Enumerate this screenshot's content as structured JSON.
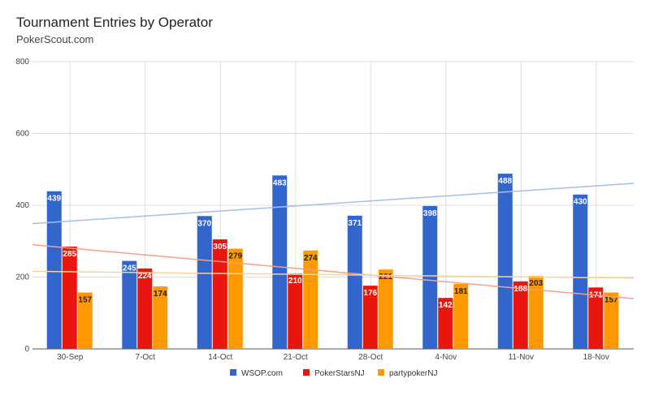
{
  "title": "Tournament Entries by Operator",
  "subtitle": "PokerScout.com",
  "chart_data": {
    "type": "bar",
    "title": "Tournament Entries by Operator",
    "subtitle": "PokerScout.com",
    "categories": [
      "30-Sep",
      "7-Oct",
      "14-Oct",
      "21-Oct",
      "28-Oct",
      "4-Nov",
      "11-Nov",
      "18-Nov"
    ],
    "series": [
      {
        "name": "WSOP.com",
        "color": "#3366cc",
        "trend_color": "#a8bde6",
        "values": [
          439,
          245,
          370,
          483,
          371,
          398,
          488,
          430
        ],
        "trendline": [
          349,
          461
        ]
      },
      {
        "name": "PokerStarsNJ",
        "color": "#e8160c",
        "trend_color": "#f4a08a",
        "values": [
          285,
          224,
          305,
          210,
          176,
          142,
          188,
          171
        ],
        "trendline": [
          290,
          140
        ]
      },
      {
        "name": "partypokerNJ",
        "color": "#ff9900",
        "trend_color": "#f6d5a0",
        "values": [
          157,
          174,
          279,
          274,
          221,
          181,
          203,
          157
        ],
        "trendline": [
          216,
          197
        ]
      }
    ],
    "ylim": [
      0,
      800
    ],
    "yticks": [
      0,
      200,
      400,
      600,
      800
    ],
    "grid": true,
    "legend_position": "bottom"
  }
}
